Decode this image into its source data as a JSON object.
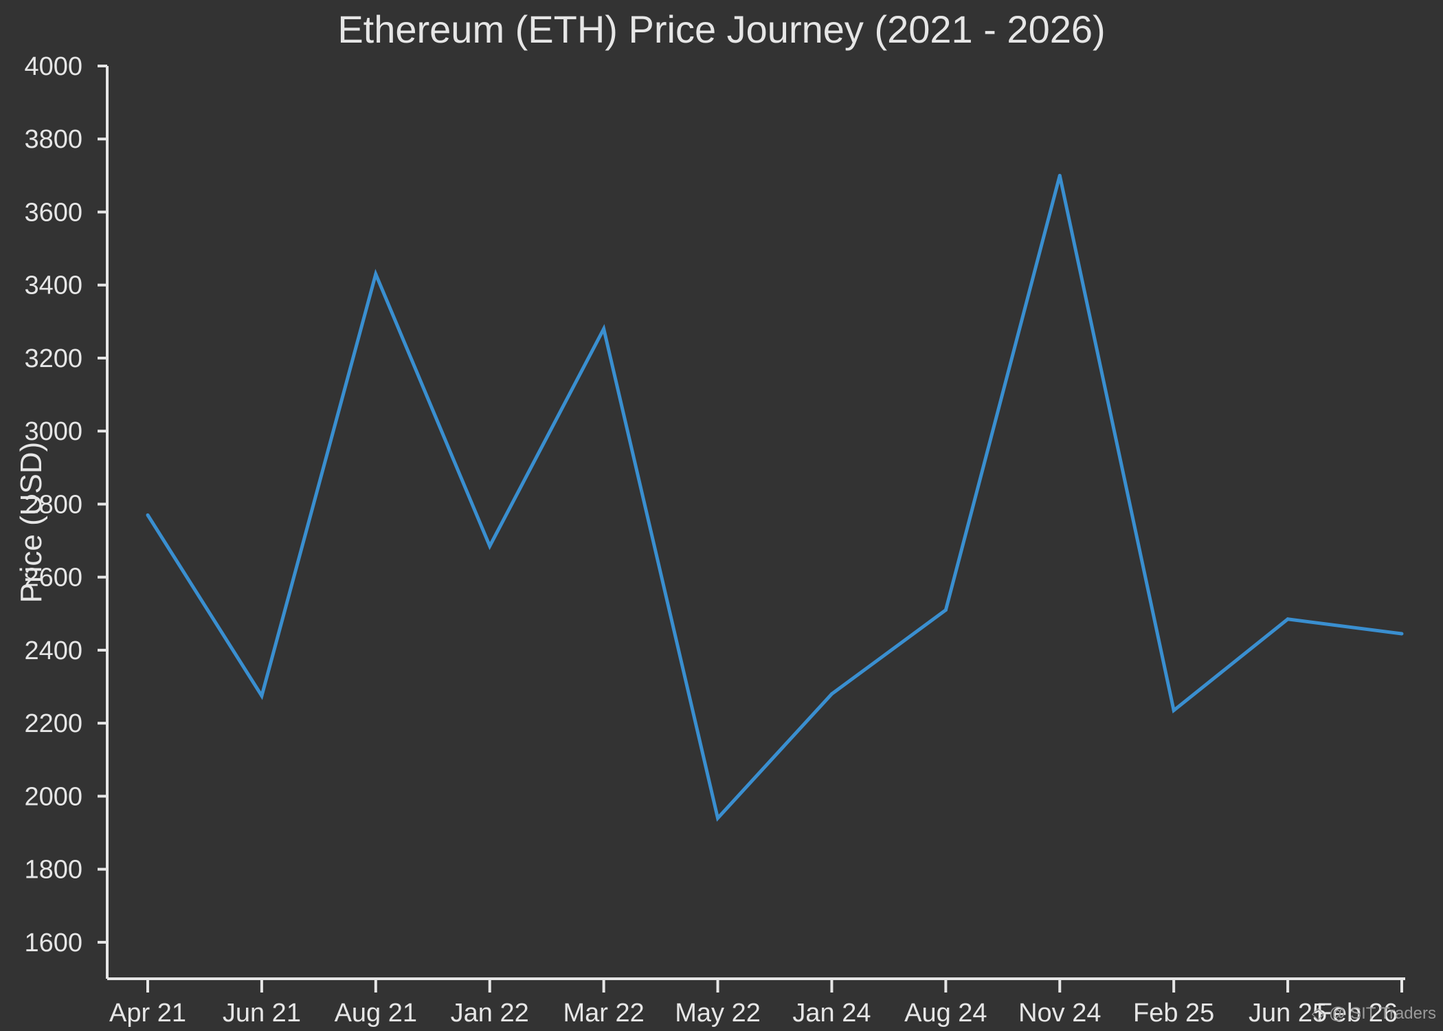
{
  "chart_data": {
    "type": "line",
    "title": "Ethereum (ETH) Price Journey (2021 - 2026)",
    "xlabel": "",
    "ylabel": "Price (USD)",
    "categories": [
      "Apr 21",
      "Jun 21",
      "Aug 21",
      "Jan 22",
      "Mar 22",
      "May 22",
      "Jan 24",
      "Aug 24",
      "Nov 24",
      "Feb 25",
      "Jun 25",
      "Feb 26"
    ],
    "series": [
      {
        "name": "",
        "values": [
          2770,
          2275,
          3430,
          2685,
          3280,
          1940,
          2280,
          2510,
          3700,
          2235,
          2485,
          2445
        ],
        "color": "#3a8fd0"
      }
    ],
    "ylim": [
      1500,
      4000
    ],
    "yticks": [
      1600,
      1800,
      2000,
      2200,
      2400,
      2600,
      2800,
      3000,
      3200,
      3400,
      3600,
      3800,
      4000
    ],
    "grid": false,
    "legend": "none"
  },
  "watermark": "◇ @ SIT Traders",
  "colors": {
    "background": "#333333",
    "text": "#e6e6e6",
    "axis": "#e6e6e6",
    "line": "#3a8fd0"
  }
}
